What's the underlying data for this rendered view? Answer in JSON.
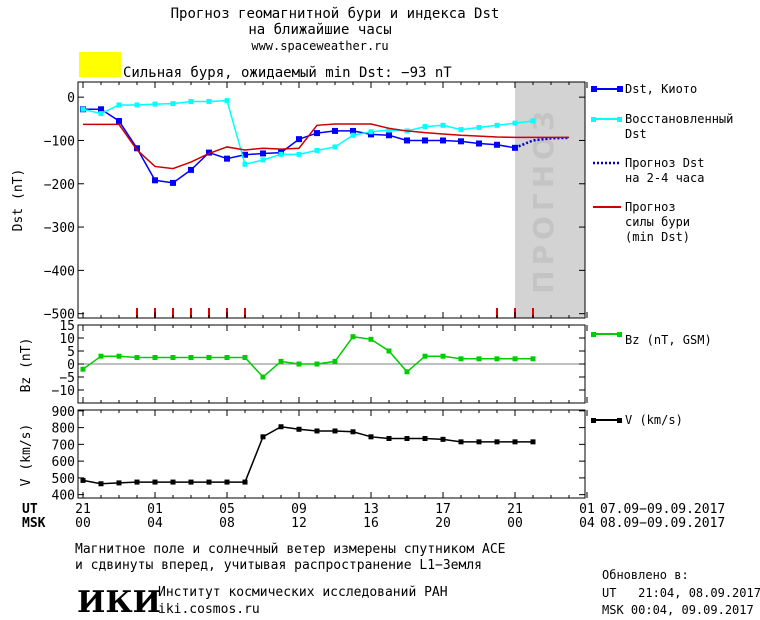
{
  "header": {
    "title_line1": "Прогноз геомагнитной бури и индекса Dst",
    "title_line2": "на ближайшие часы",
    "url": "www.spaceweather.ru",
    "storm_color": "#ffff00",
    "storm_text": "Сильная буря, ожидаемый min Dst: −93 nT"
  },
  "forecast_band": {
    "label": "прогноз",
    "color": "#d3d3d3"
  },
  "chart_data": [
    {
      "type": "line",
      "ylabel": "Dst (nT)",
      "ylim": [
        -510,
        35
      ],
      "yticks": [
        0,
        -100,
        -200,
        -300,
        -400,
        -500
      ],
      "x_unit": "hours UT from 21:00 07.09",
      "forecast_region_hours": [
        24,
        28
      ],
      "series": [
        {
          "name": "Dst, Киото",
          "color": "#0000ff",
          "x": [
            0,
            1,
            2,
            3,
            4,
            5,
            6,
            7,
            8,
            9,
            10,
            11,
            12,
            13,
            14,
            15,
            16,
            17,
            18,
            19,
            20,
            21,
            22,
            23,
            24
          ],
          "values": [
            -28,
            -28,
            -55,
            -118,
            -192,
            -198,
            -168,
            -128,
            -142,
            -133,
            -130,
            -128,
            -97,
            -83,
            -78,
            -78,
            -86,
            -88,
            -100,
            -100,
            -100,
            -102,
            -107,
            -110,
            -117
          ]
        },
        {
          "name": "Восстановленный Dst",
          "color": "#00ffff",
          "x": [
            0,
            1,
            2,
            3,
            4,
            5,
            6,
            7,
            8,
            9,
            10,
            11,
            12,
            13,
            14,
            15,
            16,
            17,
            18,
            19,
            20,
            21,
            22,
            23,
            24,
            25
          ],
          "values": [
            -28,
            -38,
            -18,
            -18,
            -16,
            -15,
            -10,
            -10,
            -8,
            -155,
            -145,
            -132,
            -132,
            -123,
            -115,
            -88,
            -80,
            -76,
            -78,
            -68,
            -65,
            -75,
            -70,
            -65,
            -60,
            -55
          ]
        },
        {
          "name": "Прогноз Dst на 2-4 часа",
          "color": "#0000cc",
          "x": [
            24,
            25,
            26,
            27
          ],
          "values": [
            -117,
            -100,
            -95,
            -94
          ]
        },
        {
          "name": "Прогноз силы бури (min Dst)",
          "color": "#cc0000",
          "x": [
            0,
            1,
            2,
            3,
            4,
            5,
            6,
            7,
            8,
            9,
            10,
            11,
            12,
            13,
            14,
            15,
            16,
            17,
            18,
            19,
            20,
            21,
            22,
            23,
            24,
            25,
            26,
            27
          ],
          "values": [
            -63,
            -63,
            -63,
            -122,
            -160,
            -165,
            -150,
            -130,
            -115,
            -122,
            -118,
            -120,
            -118,
            -65,
            -62,
            -62,
            -62,
            -72,
            -78,
            -82,
            -85,
            -88,
            -90,
            -92,
            -93,
            -93,
            -93,
            -93
          ]
        }
      ],
      "storm_markers_hours": [
        3,
        4,
        5,
        6,
        7,
        8,
        9,
        23,
        24,
        25
      ]
    },
    {
      "type": "line",
      "ylabel": "Bz (nT)",
      "ylim": [
        -15,
        15
      ],
      "yticks": [
        15,
        10,
        5,
        0,
        -5,
        -10
      ],
      "series": [
        {
          "name": "Bz (nT, GSM)",
          "color": "#00cc00",
          "x": [
            0,
            1,
            2,
            3,
            4,
            5,
            6,
            7,
            8,
            9,
            10,
            11,
            12,
            13,
            14,
            15,
            16,
            17,
            18,
            19,
            20,
            21,
            22,
            23,
            24,
            25
          ],
          "values": [
            -2,
            3,
            3,
            2.5,
            2.5,
            2.5,
            2.5,
            2.5,
            2.5,
            2.5,
            -5,
            1,
            0,
            0,
            1,
            10.5,
            9.5,
            5,
            -3,
            3,
            3,
            2,
            2,
            2,
            2,
            2
          ]
        }
      ]
    },
    {
      "type": "line",
      "ylabel": "V (km/s)",
      "ylim": [
        380,
        905
      ],
      "yticks": [
        900,
        800,
        700,
        600,
        500,
        400
      ],
      "series": [
        {
          "name": "V (km/s)",
          "color": "#000000",
          "x": [
            0,
            1,
            2,
            3,
            4,
            5,
            6,
            7,
            8,
            9,
            10,
            11,
            12,
            13,
            14,
            15,
            16,
            17,
            18,
            19,
            20,
            21,
            22,
            23,
            24,
            25
          ],
          "values": [
            485,
            465,
            470,
            475,
            475,
            475,
            475,
            475,
            475,
            475,
            745,
            805,
            790,
            780,
            780,
            775,
            745,
            735,
            735,
            735,
            730,
            715,
            715,
            715,
            715,
            715
          ]
        }
      ]
    }
  ],
  "time_axis": {
    "ut_label": "UT",
    "msk_label": "MSK",
    "ut_ticks": [
      "21",
      "01",
      "05",
      "09",
      "13",
      "17",
      "21",
      "01"
    ],
    "msk_ticks": [
      "00",
      "04",
      "08",
      "12",
      "16",
      "20",
      "00",
      "04"
    ],
    "ut_dates": "07.09−09.09.2017",
    "msk_dates": "08.09−09.09.2017"
  },
  "footer": {
    "note_line1": "Магнитное поле и солнечный ветер измерены спутником ACE",
    "note_line2": "и сдвинуты вперед, учитывая распространение L1−Земля",
    "logo_text": "ИКИ",
    "institute": "Институт космических исследований РАН",
    "website": "iki.cosmos.ru",
    "updated_label": "Обновлено в:",
    "updated_ut": "UT   21:04, 08.09.2017",
    "updated_msk": "MSK 00:04, 09.09.2017"
  }
}
